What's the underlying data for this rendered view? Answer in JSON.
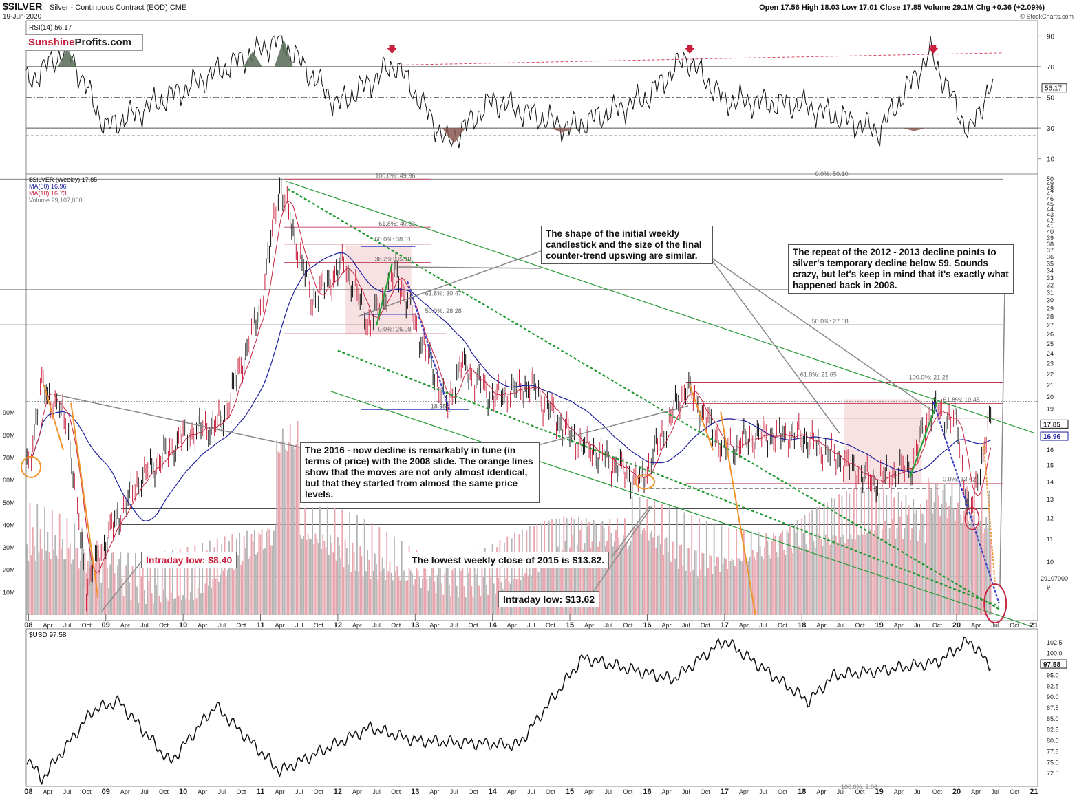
{
  "header": {
    "symbol": "$SILVER",
    "description": "Silver - Continuous Contract (EOD)",
    "exchange": "CME",
    "date": "19-Jun-2020",
    "ohlc": "Open 17.56  High 18.03  Low 17.01  Close 17.85  Volume 29.1M  Chg +0.36 (+2.09%)",
    "credit": "© StockCharts.com"
  },
  "logo": {
    "part1": "Sunshine",
    "part2": "Profits.com"
  },
  "rsi_panel": {
    "legend": "RSI(14) 56.17",
    "last_value": "56.17",
    "ticks": [
      "90",
      "70",
      "50",
      "30",
      "10"
    ]
  },
  "price_panel": {
    "legend_lines": [
      "$SILVER (Weekly) 17.85",
      "MA(50) 16.96",
      "MA(10) 16.73",
      "Volume 29,107,000"
    ],
    "legend_colors": [
      "#111111",
      "#1b1f9c",
      "#c8213d",
      "#777777"
    ],
    "price_ticks": [
      "50",
      "49",
      "48",
      "47",
      "46",
      "45",
      "44",
      "43",
      "42",
      "41",
      "40",
      "39",
      "38",
      "37",
      "36",
      "35",
      "34",
      "33",
      "32",
      "31",
      "30",
      "29",
      "28",
      "27",
      "26",
      "25",
      "24",
      "23",
      "22",
      "21",
      "20",
      "19",
      "18",
      "17",
      "16",
      "15",
      "14",
      "13",
      "12",
      "11",
      "10",
      "9"
    ],
    "volume_ticks": [
      "90M",
      "80M",
      "70M",
      "60M",
      "50M",
      "40M",
      "30M",
      "20M",
      "10M"
    ],
    "tags": {
      "close": "17.85",
      "ma50": "16.96",
      "volume": "29107000"
    },
    "fib_labels": [
      "100.0%: 49.96",
      "61.8%: 40.83",
      "50.0%: 38.01",
      "38.2%: 35.19",
      "0.0%: 26.08",
      "61.8%: 30.47",
      "50.0%: 28.28",
      "18.95",
      "0.0%: 50.10",
      "50.0%: 27.08",
      "61.8%: 21.65",
      "100.0%: 21.28",
      "61.8%: 19.45",
      "0.0%: 13.62"
    ],
    "x_ticks": [
      "08",
      "Apr",
      "Jul",
      "Oct",
      "09",
      "Apr",
      "Jul",
      "Oct",
      "10",
      "Apr",
      "Jul",
      "Oct",
      "11",
      "Apr",
      "Jul",
      "Oct",
      "12",
      "Apr",
      "Jul",
      "Oct",
      "13",
      "Apr",
      "Jul",
      "Oct",
      "14",
      "Apr",
      "Jul",
      "Oct",
      "15",
      "Apr",
      "Jul",
      "Oct",
      "16",
      "Apr",
      "Jul",
      "Oct",
      "17",
      "Apr",
      "Jul",
      "Oct",
      "18",
      "Apr",
      "Jul",
      "Oct",
      "19",
      "Apr",
      "Jul",
      "Oct",
      "20",
      "Apr",
      "Jul",
      "Oct",
      "21"
    ]
  },
  "usd_panel": {
    "legend": "$USD 97.58",
    "last_value": "97.58",
    "ticks": [
      "102.5",
      "100.0",
      "97.5",
      "95.0",
      "92.5",
      "90.0",
      "87.5",
      "85.0",
      "82.5",
      "80.0",
      "77.5",
      "75.0",
      "72.5"
    ],
    "fib_label": "100.0%: 2.06"
  },
  "annotations": {
    "shape_note": "The shape of the initial weekly candlestick and the size of the final counter-trend upswing are similar.",
    "repeat_note": "The repeat of the 2012 - 2013 decline points to silver's temporary decline below $9. Sounds crazy, but let's keep in mind that it's exactly what happened back in 2008.",
    "decline_note": "The 2016 - now decline is remarkably in tune (in terms of price) with the 2008 slide. The orange lines show that the moves are not only almost identical, but that they started from almost the same price levels.",
    "intraday_low_2008": "Intraday low: $8.40",
    "lowest_close_2015": "The lowest weekly close of 2015 is $13.82.",
    "intraday_low_2015": "Intraday low: $13.62"
  },
  "chart_data": [
    {
      "type": "line",
      "name": "RSI(14)",
      "x": [
        "2008",
        "2008-07",
        "2009",
        "2010",
        "2011-04",
        "2012",
        "2012-10",
        "2013-06",
        "2014",
        "2015",
        "2016",
        "2016-07",
        "2017",
        "2018",
        "2019",
        "2019-09",
        "2020-03",
        "2020-06"
      ],
      "values": [
        60,
        82,
        30,
        55,
        88,
        45,
        72,
        20,
        48,
        30,
        50,
        76,
        48,
        45,
        28,
        79,
        26,
        56.17
      ],
      "ylim": [
        0,
        100
      ],
      "reference_lines": [
        70,
        50,
        30
      ]
    },
    {
      "type": "line",
      "name": "$SILVER (Weekly)",
      "x": [
        "2008-01",
        "2008-03",
        "2008-07",
        "2008-10",
        "2009-01",
        "2009-06",
        "2010-01",
        "2010-07",
        "2011-01",
        "2011-04",
        "2011-09",
        "2012-02",
        "2012-06",
        "2012-10",
        "2013-06",
        "2013-08",
        "2014-01",
        "2014-07",
        "2015-01",
        "2015-12",
        "2016-07",
        "2017-01",
        "2017-06",
        "2018-01",
        "2018-12",
        "2019-06",
        "2019-09",
        "2020-01",
        "2020-03",
        "2020-06"
      ],
      "values": [
        15,
        21,
        18,
        9,
        11,
        14,
        17,
        18,
        29,
        49,
        30,
        35,
        27,
        34,
        19,
        23,
        20,
        21,
        17,
        14,
        21,
        16,
        17,
        17,
        14,
        15,
        19,
        18,
        12,
        17.85
      ],
      "ylim": [
        8,
        50
      ],
      "volume_ylim": [
        0,
        100
      ]
    },
    {
      "type": "line",
      "name": "$USD",
      "x": [
        "2008",
        "2008-03",
        "2008-11",
        "2009-03",
        "2009-11",
        "2010-06",
        "2011-04",
        "2012-06",
        "2013",
        "2014-05",
        "2015-03",
        "2016-05",
        "2017-01",
        "2018-02",
        "2018-06",
        "2019-01",
        "2019-10",
        "2020-03",
        "2020-06"
      ],
      "values": [
        76,
        71,
        87,
        89,
        75,
        88,
        73,
        83,
        80,
        79,
        99,
        94,
        103,
        89,
        95,
        96,
        98,
        103,
        97.58
      ],
      "ylim": [
        70,
        105
      ]
    }
  ]
}
